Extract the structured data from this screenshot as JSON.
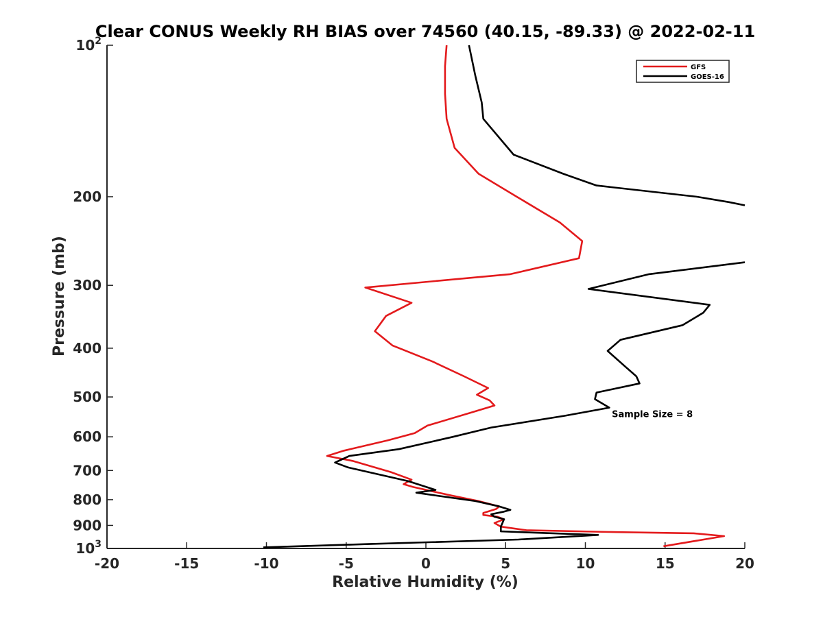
{
  "chart_data": {
    "type": "line",
    "title": "Clear CONUS Weekly RH BIAS over 74560 (40.15, -89.33) @ 2022-02-11",
    "xlabel": "Relative Humidity (%)",
    "ylabel": "Pressure (mb)",
    "xlim": [
      -20,
      20
    ],
    "ylim": [
      100,
      1000
    ],
    "y_scale": "log",
    "y_reversed": true,
    "grid": false,
    "legend_position": "top-right",
    "x_ticks": [
      "-20",
      "-15",
      "-10",
      "-5",
      "0",
      "5",
      "10",
      "15",
      "20"
    ],
    "y_ticks": [
      {
        "value": 100,
        "base": "10",
        "exp": "2"
      },
      {
        "value": 200,
        "label": "200"
      },
      {
        "value": 300,
        "label": "300"
      },
      {
        "value": 400,
        "label": "400"
      },
      {
        "value": 500,
        "label": "500"
      },
      {
        "value": 600,
        "label": "600"
      },
      {
        "value": 700,
        "label": "700"
      },
      {
        "value": 800,
        "label": "800"
      },
      {
        "value": 900,
        "label": "900"
      },
      {
        "value": 1000,
        "base": "10",
        "exp": "3"
      }
    ],
    "series": [
      {
        "name": "GFS",
        "color": "#e31a1c",
        "points": [
          [
            1.3,
            100
          ],
          [
            1.2,
            110
          ],
          [
            1.2,
            125
          ],
          [
            1.3,
            140
          ],
          [
            1.8,
            160
          ],
          [
            3.3,
            180
          ],
          [
            5.7,
            200
          ],
          [
            8.4,
            225
          ],
          [
            9.8,
            245
          ],
          [
            9.6,
            265
          ],
          [
            5.3,
            285
          ],
          [
            -3.8,
            303
          ],
          [
            -0.9,
            325
          ],
          [
            -2.5,
            345
          ],
          [
            -3.2,
            370
          ],
          [
            -2.1,
            395
          ],
          [
            0.4,
            425
          ],
          [
            2.4,
            455
          ],
          [
            3.9,
            480
          ],
          [
            3.2,
            495
          ],
          [
            4.0,
            508
          ],
          [
            4.3,
            520
          ],
          [
            3.0,
            535
          ],
          [
            0.1,
            570
          ],
          [
            -0.7,
            590
          ],
          [
            -2.4,
            610
          ],
          [
            -5.2,
            640
          ],
          [
            -6.2,
            655
          ],
          [
            -4.6,
            670
          ],
          [
            -2.2,
            705
          ],
          [
            -0.9,
            730
          ],
          [
            -1.4,
            745
          ],
          [
            -0.8,
            755
          ],
          [
            1.6,
            785
          ],
          [
            3.3,
            805
          ],
          [
            4.6,
            825
          ],
          [
            4.4,
            835
          ],
          [
            3.6,
            850
          ],
          [
            3.6,
            858
          ],
          [
            4.5,
            865
          ],
          [
            4.9,
            875
          ],
          [
            4.3,
            890
          ],
          [
            4.7,
            905
          ],
          [
            6.3,
            920
          ],
          [
            12.0,
            928
          ],
          [
            16.8,
            933
          ],
          [
            18.7,
            945
          ],
          [
            14.9,
            990
          ]
        ]
      },
      {
        "name": "GOES-16",
        "color": "#000000",
        "points": [
          [
            2.7,
            100
          ],
          [
            3.1,
            115
          ],
          [
            3.5,
            130
          ],
          [
            3.6,
            140
          ],
          [
            5.5,
            165
          ],
          [
            8.6,
            180
          ],
          [
            10.7,
            190
          ],
          [
            17.0,
            200
          ],
          [
            19.0,
            205
          ],
          [
            20.0,
            208
          ],
          [
            null,
            null
          ],
          [
            20.0,
            270
          ],
          [
            14.0,
            285
          ],
          [
            10.2,
            305
          ],
          [
            17.8,
            328
          ],
          [
            17.4,
            340
          ],
          [
            16.1,
            360
          ],
          [
            12.2,
            385
          ],
          [
            11.4,
            405
          ],
          [
            12.5,
            435
          ],
          [
            13.2,
            455
          ],
          [
            13.4,
            470
          ],
          [
            10.7,
            490
          ],
          [
            10.6,
            505
          ],
          [
            11.5,
            525
          ],
          [
            8.7,
            545
          ],
          [
            4.1,
            575
          ],
          [
            1.7,
            600
          ],
          [
            -1.7,
            635
          ],
          [
            -4.8,
            655
          ],
          [
            -5.7,
            675
          ],
          [
            -4.9,
            690
          ],
          [
            -1.1,
            735
          ],
          [
            0.6,
            765
          ],
          [
            -0.6,
            775
          ],
          [
            3.1,
            805
          ],
          [
            4.6,
            825
          ],
          [
            5.3,
            838
          ],
          [
            4.9,
            845
          ],
          [
            4.1,
            855
          ],
          [
            4.3,
            865
          ],
          [
            4.9,
            875
          ],
          [
            4.8,
            890
          ],
          [
            4.7,
            905
          ],
          [
            4.7,
            925
          ],
          [
            10.8,
            940
          ],
          [
            5.8,
            960
          ],
          [
            -3.6,
            980
          ],
          [
            -10.2,
            995
          ]
        ]
      }
    ],
    "annotations": [
      {
        "text": "Sample Size = 8",
        "x": 14.2,
        "y": 935
      }
    ]
  }
}
